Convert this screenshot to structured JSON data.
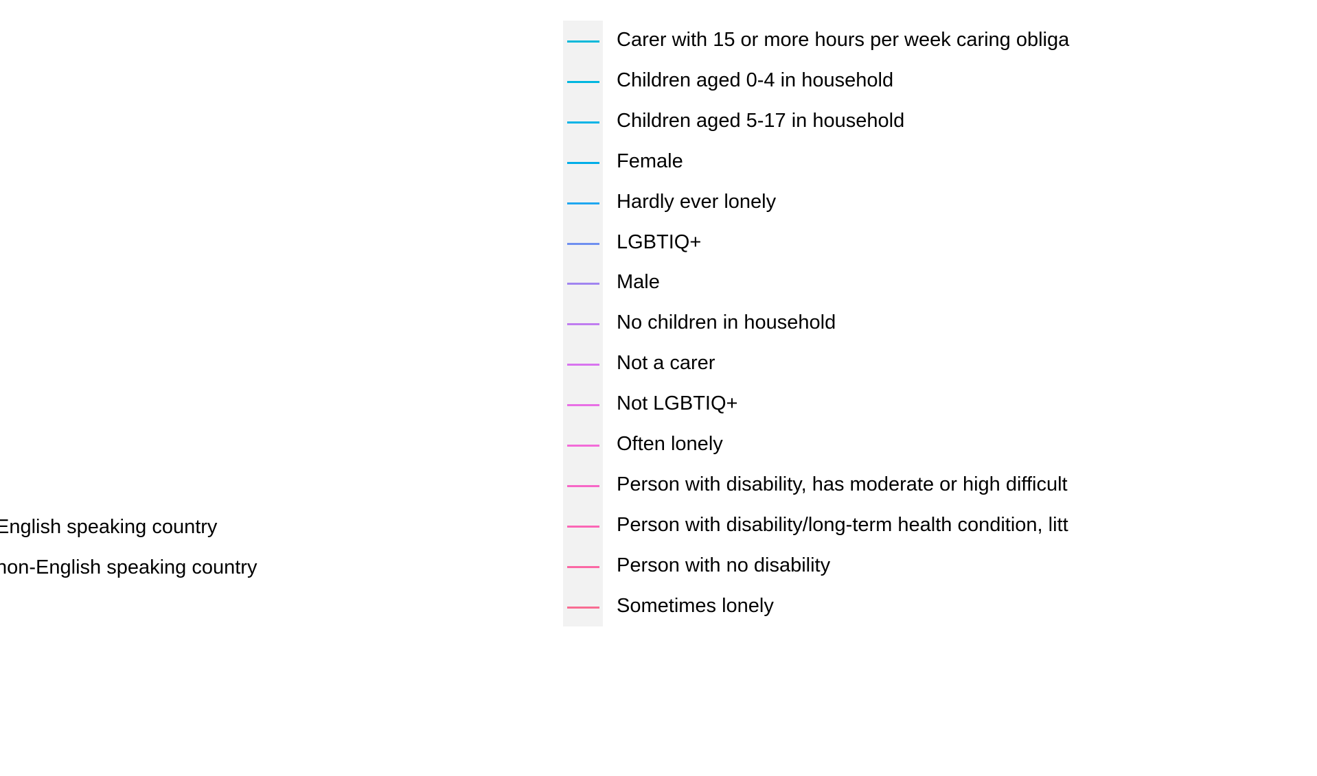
{
  "chart_data": {
    "type": "line",
    "partial_legend_entries": [
      "English speaking country",
      "non-English speaking country"
    ],
    "legend_entries": [
      {
        "label": "Carer with 15 or more hours per week caring obliga",
        "color": "#00b8d9"
      },
      {
        "label": "Children aged 0-4 in household",
        "color": "#00b6e0"
      },
      {
        "label": "Children aged 5-17 in household",
        "color": "#00b3e6"
      },
      {
        "label": "Female",
        "color": "#00ade8"
      },
      {
        "label": "Hardly ever lonely",
        "color": "#1fa7f0"
      },
      {
        "label": "LGBTIQ+",
        "color": "#6f8ff0"
      },
      {
        "label": "Male",
        "color": "#a185f0"
      },
      {
        "label": "No children in household",
        "color": "#c07df0"
      },
      {
        "label": "Not a carer",
        "color": "#d874ef"
      },
      {
        "label": "Not LGBTIQ+",
        "color": "#e86fe5"
      },
      {
        "label": "Often lonely",
        "color": "#f36bd8"
      },
      {
        "label": "Person with disability, has moderate or high difficult",
        "color": "#f767c7"
      },
      {
        "label": "Person with disability/long-term health condition, litt",
        "color": "#fb66b6"
      },
      {
        "label": "Person with no disability",
        "color": "#fb68a4"
      },
      {
        "label": "Sometimes lonely",
        "color": "#f86c92"
      }
    ]
  }
}
